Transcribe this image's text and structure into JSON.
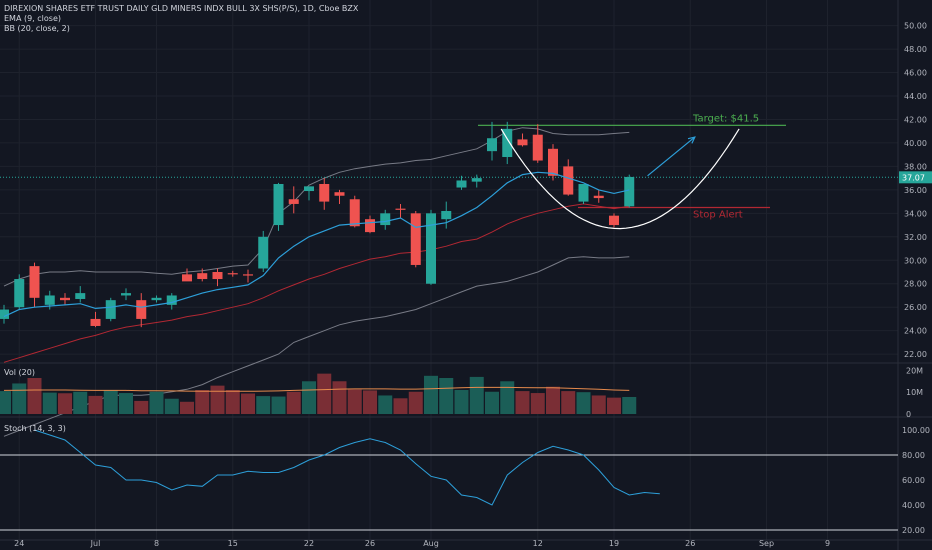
{
  "header": {
    "title": "DIREXION SHARES ETF TRUST DAILY GLD MINERS INDX BULL 3X SHS(P/S), 1D, Cboe BZX",
    "indicator_ema": "EMA (9, close)",
    "indicator_bb": "BB (20, close, 2)",
    "volume_label": "Vol (20)",
    "stoch_label": "Stoch (14, 3, 3)"
  },
  "colors": {
    "background": "#131722",
    "up": "#26a69a",
    "down": "#ef5350",
    "ema": "#2d9fd9",
    "bb_basis": "#b22833",
    "bb_band": "#787b86",
    "target_line": "#4caf50",
    "stop_line": "#b22833",
    "arc": "#ffffff",
    "arrow": "#2d9fd9",
    "stoch": "#2d9fd9"
  },
  "chart_data": [
    {
      "type": "candlestick",
      "name": "price",
      "ylim": [
        21.5,
        51.5
      ],
      "y_ticks": [
        22,
        24,
        26,
        28,
        30,
        32,
        34,
        36,
        38,
        40,
        42,
        44,
        46,
        48,
        50
      ],
      "y_tick_labels": [
        "22.00",
        "24.00",
        "26.00",
        "28.00",
        "30.00",
        "32.00",
        "34.00",
        "36.00",
        "38.00",
        "40.00",
        "42.00",
        "44.00",
        "46.00",
        "48.00",
        "50.00"
      ],
      "x_tick_labels": [
        {
          "label": "24",
          "index": 1
        },
        {
          "label": "Jul",
          "index": 6
        },
        {
          "label": "8",
          "index": 10
        },
        {
          "label": "15",
          "index": 15
        },
        {
          "label": "22",
          "index": 20
        },
        {
          "label": "26",
          "index": 24
        },
        {
          "label": "Aug",
          "index": 28
        },
        {
          "label": "12",
          "index": 35
        },
        {
          "label": "19",
          "index": 40
        },
        {
          "label": "26",
          "index": 45
        },
        {
          "label": "Sep",
          "index": 50
        },
        {
          "label": "9",
          "index": 54
        }
      ],
      "candles": [
        {
          "o": 25.0,
          "h": 26.2,
          "l": 24.6,
          "c": 25.8
        },
        {
          "o": 26.0,
          "h": 28.8,
          "l": 25.8,
          "c": 28.4
        },
        {
          "o": 29.5,
          "h": 29.8,
          "l": 26.0,
          "c": 26.8
        },
        {
          "o": 26.2,
          "h": 27.4,
          "l": 25.8,
          "c": 27.0
        },
        {
          "o": 26.8,
          "h": 27.2,
          "l": 26.2,
          "c": 26.6
        },
        {
          "o": 26.7,
          "h": 27.8,
          "l": 26.4,
          "c": 27.2
        },
        {
          "o": 25.0,
          "h": 25.6,
          "l": 24.3,
          "c": 24.4
        },
        {
          "o": 25.0,
          "h": 26.8,
          "l": 24.8,
          "c": 26.6
        },
        {
          "o": 27.0,
          "h": 27.6,
          "l": 26.6,
          "c": 27.2
        },
        {
          "o": 26.6,
          "h": 27.2,
          "l": 24.3,
          "c": 25.0
        },
        {
          "o": 26.6,
          "h": 27.0,
          "l": 26.4,
          "c": 26.8
        },
        {
          "o": 26.2,
          "h": 27.2,
          "l": 25.8,
          "c": 27.0
        },
        {
          "o": 28.8,
          "h": 29.3,
          "l": 28.4,
          "c": 28.2
        },
        {
          "o": 28.9,
          "h": 29.3,
          "l": 28.2,
          "c": 28.4
        },
        {
          "o": 29.0,
          "h": 29.3,
          "l": 27.8,
          "c": 28.4
        },
        {
          "o": 28.9,
          "h": 29.1,
          "l": 28.6,
          "c": 28.8
        },
        {
          "o": 28.8,
          "h": 29.2,
          "l": 28.1,
          "c": 28.7
        },
        {
          "o": 29.3,
          "h": 32.5,
          "l": 29.0,
          "c": 32.0
        },
        {
          "o": 33.0,
          "h": 36.6,
          "l": 32.5,
          "c": 36.5
        },
        {
          "o": 35.2,
          "h": 36.3,
          "l": 34.0,
          "c": 34.8
        },
        {
          "o": 35.9,
          "h": 36.2,
          "l": 35.1,
          "c": 36.3
        },
        {
          "o": 36.5,
          "h": 37.0,
          "l": 34.3,
          "c": 35.0
        },
        {
          "o": 35.8,
          "h": 36.0,
          "l": 34.8,
          "c": 35.5
        },
        {
          "o": 35.2,
          "h": 35.5,
          "l": 32.8,
          "c": 32.9
        },
        {
          "o": 33.5,
          "h": 33.8,
          "l": 32.3,
          "c": 32.4
        },
        {
          "o": 33.0,
          "h": 34.3,
          "l": 32.6,
          "c": 34.0
        },
        {
          "o": 34.4,
          "h": 34.8,
          "l": 33.6,
          "c": 34.3
        },
        {
          "o": 34.0,
          "h": 34.2,
          "l": 29.4,
          "c": 29.6
        },
        {
          "o": 28.0,
          "h": 34.3,
          "l": 27.9,
          "c": 34.0
        },
        {
          "o": 33.5,
          "h": 35.0,
          "l": 32.7,
          "c": 34.2
        },
        {
          "o": 36.2,
          "h": 37.2,
          "l": 36.0,
          "c": 36.8
        },
        {
          "o": 36.7,
          "h": 37.3,
          "l": 36.2,
          "c": 37.0
        },
        {
          "o": 39.3,
          "h": 41.8,
          "l": 38.5,
          "c": 40.4
        },
        {
          "o": 38.8,
          "h": 41.8,
          "l": 38.2,
          "c": 41.2
        },
        {
          "o": 40.3,
          "h": 40.8,
          "l": 39.7,
          "c": 39.8
        },
        {
          "o": 40.7,
          "h": 41.6,
          "l": 38.3,
          "c": 38.5
        },
        {
          "o": 39.5,
          "h": 39.9,
          "l": 36.8,
          "c": 37.2
        },
        {
          "o": 38.0,
          "h": 38.6,
          "l": 35.5,
          "c": 35.6
        },
        {
          "o": 35.0,
          "h": 36.2,
          "l": 34.8,
          "c": 36.5
        },
        {
          "o": 35.5,
          "h": 36.0,
          "l": 34.9,
          "c": 35.3
        },
        {
          "o": 33.8,
          "h": 34.0,
          "l": 32.8,
          "c": 33.0
        },
        {
          "o": 34.6,
          "h": 37.3,
          "l": 34.5,
          "c": 37.1
        }
      ],
      "ema9": [
        25.2,
        25.8,
        26.0,
        26.1,
        26.2,
        26.3,
        25.9,
        26.0,
        26.2,
        26.0,
        26.2,
        26.4,
        26.8,
        27.2,
        27.5,
        27.7,
        27.9,
        28.7,
        30.2,
        31.2,
        32.0,
        32.5,
        33.0,
        33.1,
        33.2,
        33.3,
        33.6,
        32.8,
        33.0,
        33.2,
        33.8,
        34.5,
        35.5,
        36.6,
        37.3,
        37.5,
        37.4,
        37.0,
        36.6,
        36.0,
        35.7,
        36.0
      ],
      "bb_basis": [
        21.3,
        21.7,
        22.1,
        22.5,
        22.9,
        23.3,
        23.6,
        24.0,
        24.3,
        24.5,
        24.7,
        24.9,
        25.2,
        25.4,
        25.7,
        26.0,
        26.3,
        26.8,
        27.4,
        27.9,
        28.4,
        28.8,
        29.3,
        29.7,
        30.1,
        30.3,
        30.6,
        30.7,
        30.9,
        31.2,
        31.6,
        31.8,
        32.4,
        33.1,
        33.6,
        34.0,
        34.3,
        34.6,
        34.8,
        34.6,
        34.4,
        34.6
      ],
      "bb_upper": [
        27.8,
        28.4,
        28.8,
        29.0,
        29.0,
        29.1,
        29.0,
        29.0,
        29.0,
        29.0,
        28.9,
        28.8,
        29.0,
        29.1,
        29.3,
        29.5,
        29.6,
        31.0,
        34.0,
        35.0,
        36.4,
        37.0,
        37.5,
        37.8,
        38.0,
        38.2,
        38.3,
        38.5,
        38.6,
        38.9,
        39.2,
        39.5,
        40.2,
        41.0,
        41.3,
        41.2,
        40.8,
        40.7,
        40.7,
        40.7,
        40.8,
        40.9
      ],
      "bb_lower": [
        15.0,
        15.5,
        16.0,
        16.5,
        17.0,
        17.5,
        18.0,
        18.5,
        18.5,
        18.5,
        18.6,
        18.8,
        19.0,
        19.4,
        20.0,
        20.5,
        21.0,
        21.5,
        22.0,
        23.0,
        23.5,
        24.0,
        24.5,
        24.8,
        25.0,
        25.2,
        25.5,
        25.8,
        26.3,
        26.8,
        27.3,
        27.8,
        28.0,
        28.2,
        28.6,
        29.0,
        29.6,
        30.2,
        30.3,
        30.2,
        30.2,
        30.3
      ],
      "last_price": "37.07",
      "last_value": 37.07,
      "annotations": {
        "target_label": "Target: $41.5",
        "target_value": 41.5,
        "stop_label": "Stop Alert",
        "stop_value": 34.5
      }
    },
    {
      "type": "bar",
      "name": "volume",
      "ylim": [
        0,
        22
      ],
      "y_tick_labels": [
        "20M",
        "10M",
        "0"
      ],
      "y_tick_values": [
        20,
        10,
        0
      ],
      "values": [
        10.5,
        14.0,
        16.5,
        9.8,
        9.5,
        10.2,
        8.3,
        11.0,
        9.6,
        6.0,
        10.2,
        7.0,
        5.6,
        11.0,
        13.0,
        11.0,
        9.4,
        8.2,
        8.0,
        10.2,
        15.0,
        18.5,
        15.0,
        11.2,
        10.8,
        8.5,
        7.2,
        10.2,
        17.5,
        16.5,
        11.0,
        17.0,
        10.2,
        15.0,
        10.5,
        9.6,
        12.5,
        10.5,
        10.0,
        8.5,
        7.5,
        7.8
      ],
      "ma20": [
        10.8,
        10.9,
        11.0,
        11.0,
        11.0,
        10.9,
        10.8,
        10.8,
        10.8,
        10.7,
        10.7,
        10.6,
        10.5,
        10.4,
        10.4,
        10.4,
        10.4,
        10.5,
        10.6,
        10.8,
        11.0,
        11.2,
        11.4,
        11.5,
        11.5,
        11.5,
        11.4,
        11.4,
        11.6,
        11.8,
        12.0,
        12.2,
        12.2,
        12.2,
        12.1,
        12.0,
        12.0,
        11.8,
        11.6,
        11.3,
        11.0,
        10.8
      ]
    },
    {
      "type": "line",
      "name": "stochastic",
      "ylim": [
        12,
        108
      ],
      "y_ticks": [
        20,
        40,
        60,
        80,
        100
      ],
      "y_tick_labels": [
        "20.00",
        "40.00",
        "60.00",
        "80.00",
        "100.00"
      ],
      "reference_lines": [
        80,
        20
      ],
      "values": [
        100,
        96,
        92,
        82,
        72,
        70,
        60,
        60,
        58,
        52,
        56,
        55,
        64,
        64,
        67,
        66,
        66,
        70,
        76,
        80,
        86,
        90,
        93,
        90,
        84,
        73,
        63,
        60,
        48,
        46,
        40,
        64,
        74,
        82,
        87,
        84,
        80,
        68,
        54,
        48,
        50,
        49
      ],
      "x_offset": 2
    }
  ]
}
